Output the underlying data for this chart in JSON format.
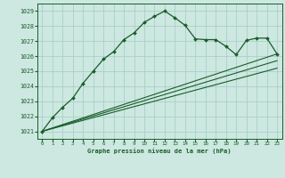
{
  "title": "Graphe pression niveau de la mer (hPa)",
  "background_color": "#cce8e0",
  "grid_color": "#aacfc8",
  "line_color": "#1a5c2a",
  "xlim": [
    -0.5,
    23.5
  ],
  "ylim": [
    1020.5,
    1029.5
  ],
  "xticks": [
    0,
    1,
    2,
    3,
    4,
    5,
    6,
    7,
    8,
    9,
    10,
    11,
    12,
    13,
    14,
    15,
    16,
    17,
    18,
    19,
    20,
    21,
    22,
    23
  ],
  "yticks": [
    1021,
    1022,
    1023,
    1024,
    1025,
    1026,
    1027,
    1028,
    1029
  ],
  "series1_x": [
    0,
    1,
    2,
    3,
    4,
    5,
    6,
    7,
    8,
    9,
    10,
    11,
    12,
    13,
    14,
    15,
    16,
    17,
    18,
    19,
    20,
    21,
    22,
    23
  ],
  "series1_y": [
    1021.0,
    1021.9,
    1022.6,
    1023.2,
    1024.2,
    1025.0,
    1025.8,
    1026.3,
    1027.1,
    1027.55,
    1028.25,
    1028.65,
    1029.0,
    1028.55,
    1028.05,
    1027.15,
    1027.1,
    1027.1,
    1026.65,
    1026.1,
    1027.05,
    1027.2,
    1027.2,
    1026.15
  ],
  "series2_x": [
    0,
    23
  ],
  "series2_y": [
    1021.0,
    1026.15
  ],
  "series3_x": [
    0,
    23
  ],
  "series3_y": [
    1021.0,
    1025.2
  ],
  "series4_x": [
    0,
    23
  ],
  "series4_y": [
    1021.0,
    1025.7
  ]
}
